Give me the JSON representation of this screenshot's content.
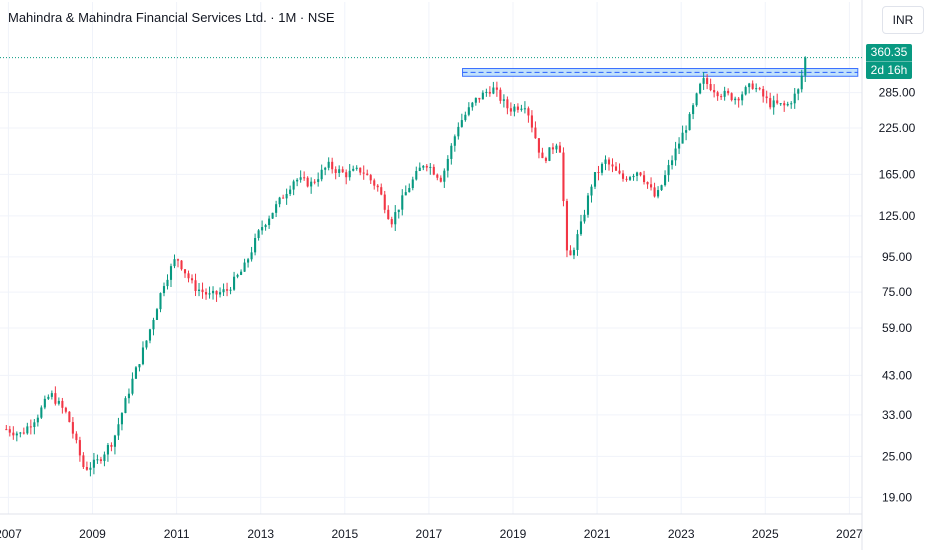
{
  "header": {
    "title": "Mahindra & Mahindra Financial Services Ltd. · 1M · NSE",
    "currency": "INR"
  },
  "price_tag": {
    "price": "360.35",
    "countdown": "2d 16h"
  },
  "colors": {
    "up": "#089981",
    "down": "#f23645",
    "zone_fill": "#bbdefb",
    "zone_line": "#2962ff",
    "current_price_line": "#089981"
  },
  "chart_data": {
    "type": "candlestick",
    "interval": "1M",
    "scale": "log",
    "x_ticks": [
      "2007",
      "2009",
      "2011",
      "2013",
      "2015",
      "2017",
      "2019",
      "2021",
      "2023",
      "2025",
      "2027"
    ],
    "y_ticks": [
      "19.00",
      "25.00",
      "33.00",
      "43.00",
      "59.00",
      "75.00",
      "95.00",
      "125.00",
      "165.00",
      "225.00",
      "285.00"
    ],
    "ylim": [
      17,
      400
    ],
    "xlim": [
      2006.8,
      2027.3
    ],
    "current_price": 360.35,
    "resistance_zone": {
      "low": 318,
      "high": 335,
      "start": 2017.8,
      "end": 2027.2
    },
    "trend": [
      [
        2006.95,
        30
      ],
      [
        2007.3,
        29
      ],
      [
        2007.7,
        33
      ],
      [
        2008.0,
        38
      ],
      [
        2008.4,
        33
      ],
      [
        2008.8,
        23
      ],
      [
        2009.1,
        24
      ],
      [
        2009.5,
        28
      ],
      [
        2009.9,
        40
      ],
      [
        2010.3,
        55
      ],
      [
        2010.7,
        80
      ],
      [
        2011.0,
        95
      ],
      [
        2011.4,
        78
      ],
      [
        2011.8,
        73
      ],
      [
        2012.2,
        76
      ],
      [
        2012.6,
        88
      ],
      [
        2013.0,
        115
      ],
      [
        2013.4,
        135
      ],
      [
        2013.8,
        160
      ],
      [
        2014.2,
        155
      ],
      [
        2014.6,
        175
      ],
      [
        2015.0,
        165
      ],
      [
        2015.4,
        170
      ],
      [
        2015.8,
        150
      ],
      [
        2016.1,
        120
      ],
      [
        2016.5,
        150
      ],
      [
        2016.9,
        180
      ],
      [
        2017.3,
        160
      ],
      [
        2017.7,
        230
      ],
      [
        2018.1,
        270
      ],
      [
        2018.5,
        295
      ],
      [
        2018.9,
        255
      ],
      [
        2019.3,
        265
      ],
      [
        2019.7,
        180
      ],
      [
        2020.1,
        210
      ],
      [
        2020.3,
        90
      ],
      [
        2020.6,
        115
      ],
      [
        2020.9,
        160
      ],
      [
        2021.2,
        180
      ],
      [
        2021.6,
        160
      ],
      [
        2022.0,
        170
      ],
      [
        2022.4,
        140
      ],
      [
        2022.8,
        185
      ],
      [
        2023.2,
        240
      ],
      [
        2023.5,
        310
      ],
      [
        2023.9,
        285
      ],
      [
        2024.3,
        275
      ],
      [
        2024.7,
        300
      ],
      [
        2025.1,
        265
      ],
      [
        2025.5,
        260
      ],
      [
        2025.8,
        290
      ],
      [
        2025.95,
        360.35
      ]
    ]
  }
}
